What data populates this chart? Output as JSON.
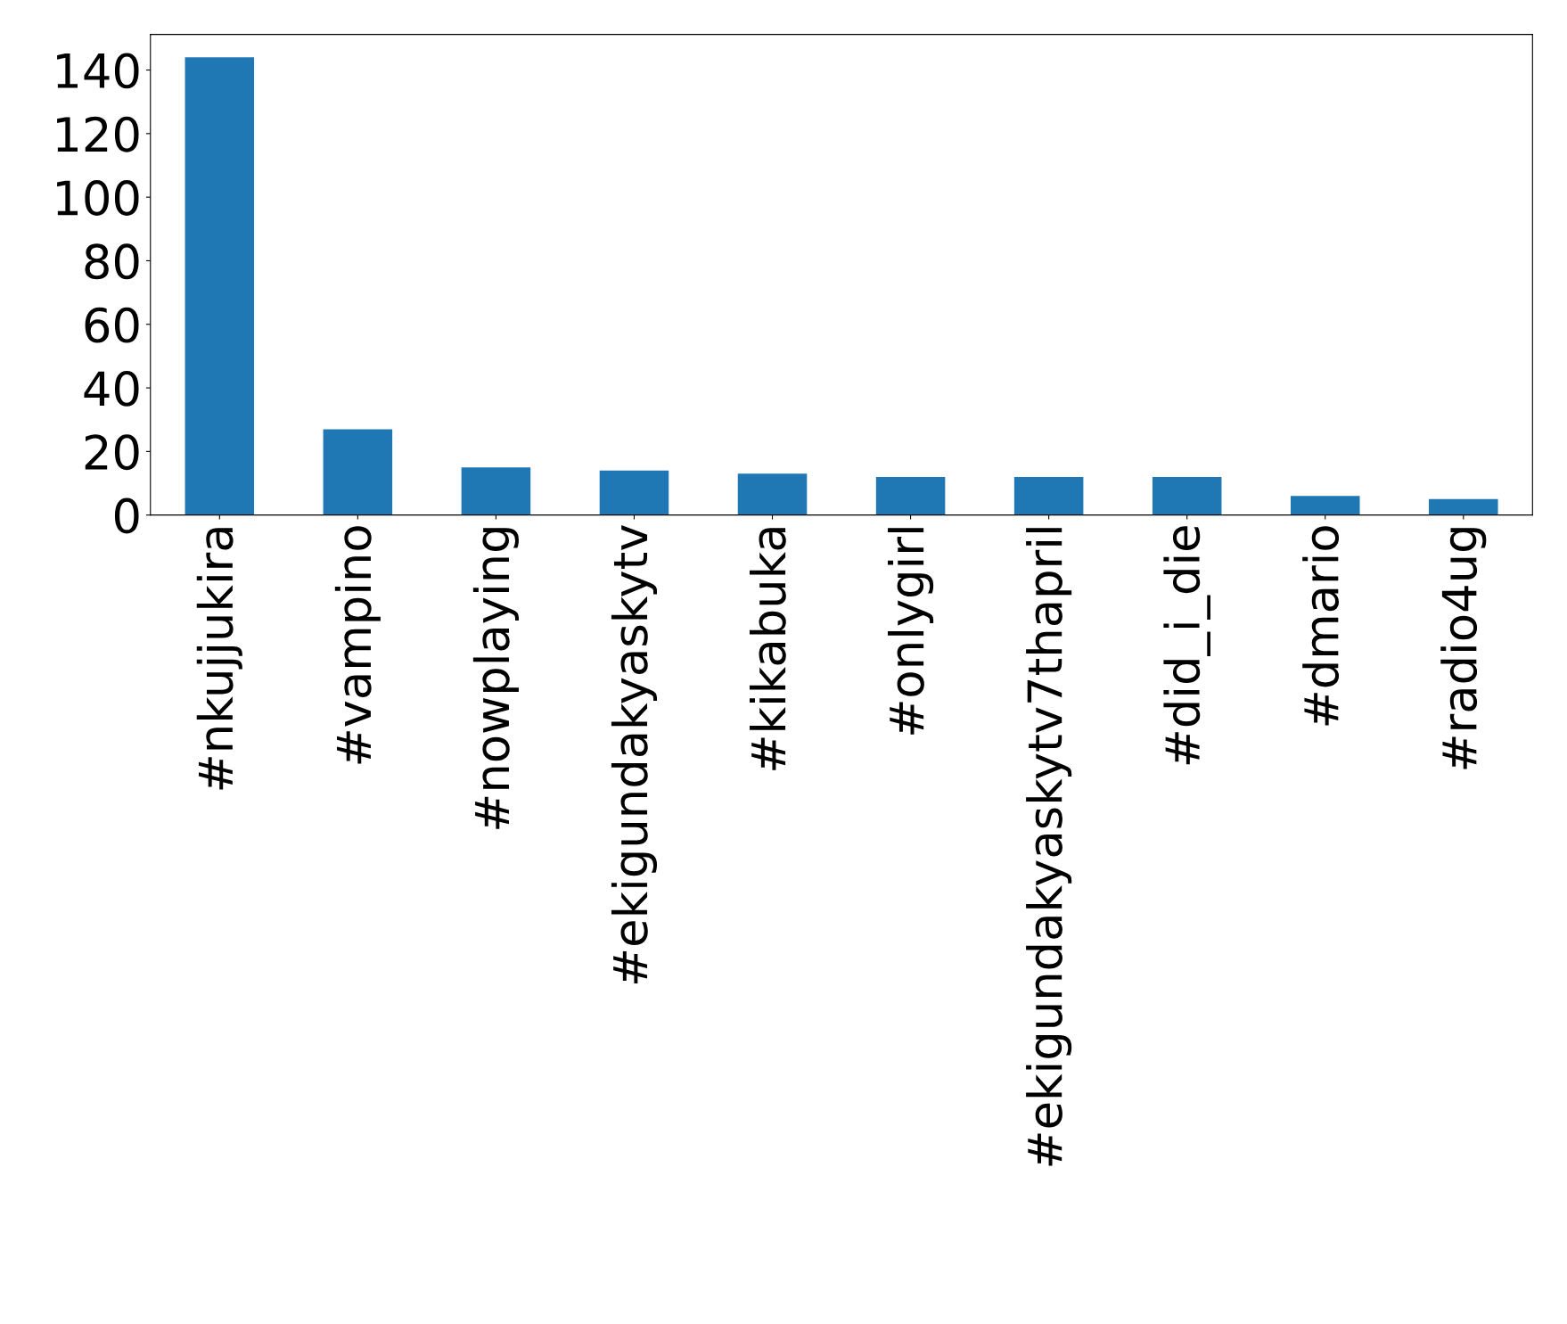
{
  "chart_data": {
    "type": "bar",
    "categories": [
      "#nkujjukira",
      "#vampino",
      "#nowplaying",
      "#ekigundakyaskytv",
      "#kikabuka",
      "#onlygirl",
      "#ekigundakyaskytv7thapril",
      "#did_i_die",
      "#dmario",
      "#radio4ug"
    ],
    "values": [
      144,
      27,
      15,
      14,
      13,
      12,
      12,
      12,
      6,
      5
    ],
    "color": "#1f77b4",
    "ylim": [
      0,
      151.2
    ],
    "yticks": [
      0,
      20,
      40,
      60,
      80,
      100,
      120,
      140
    ],
    "grid": false,
    "legend": false
  }
}
